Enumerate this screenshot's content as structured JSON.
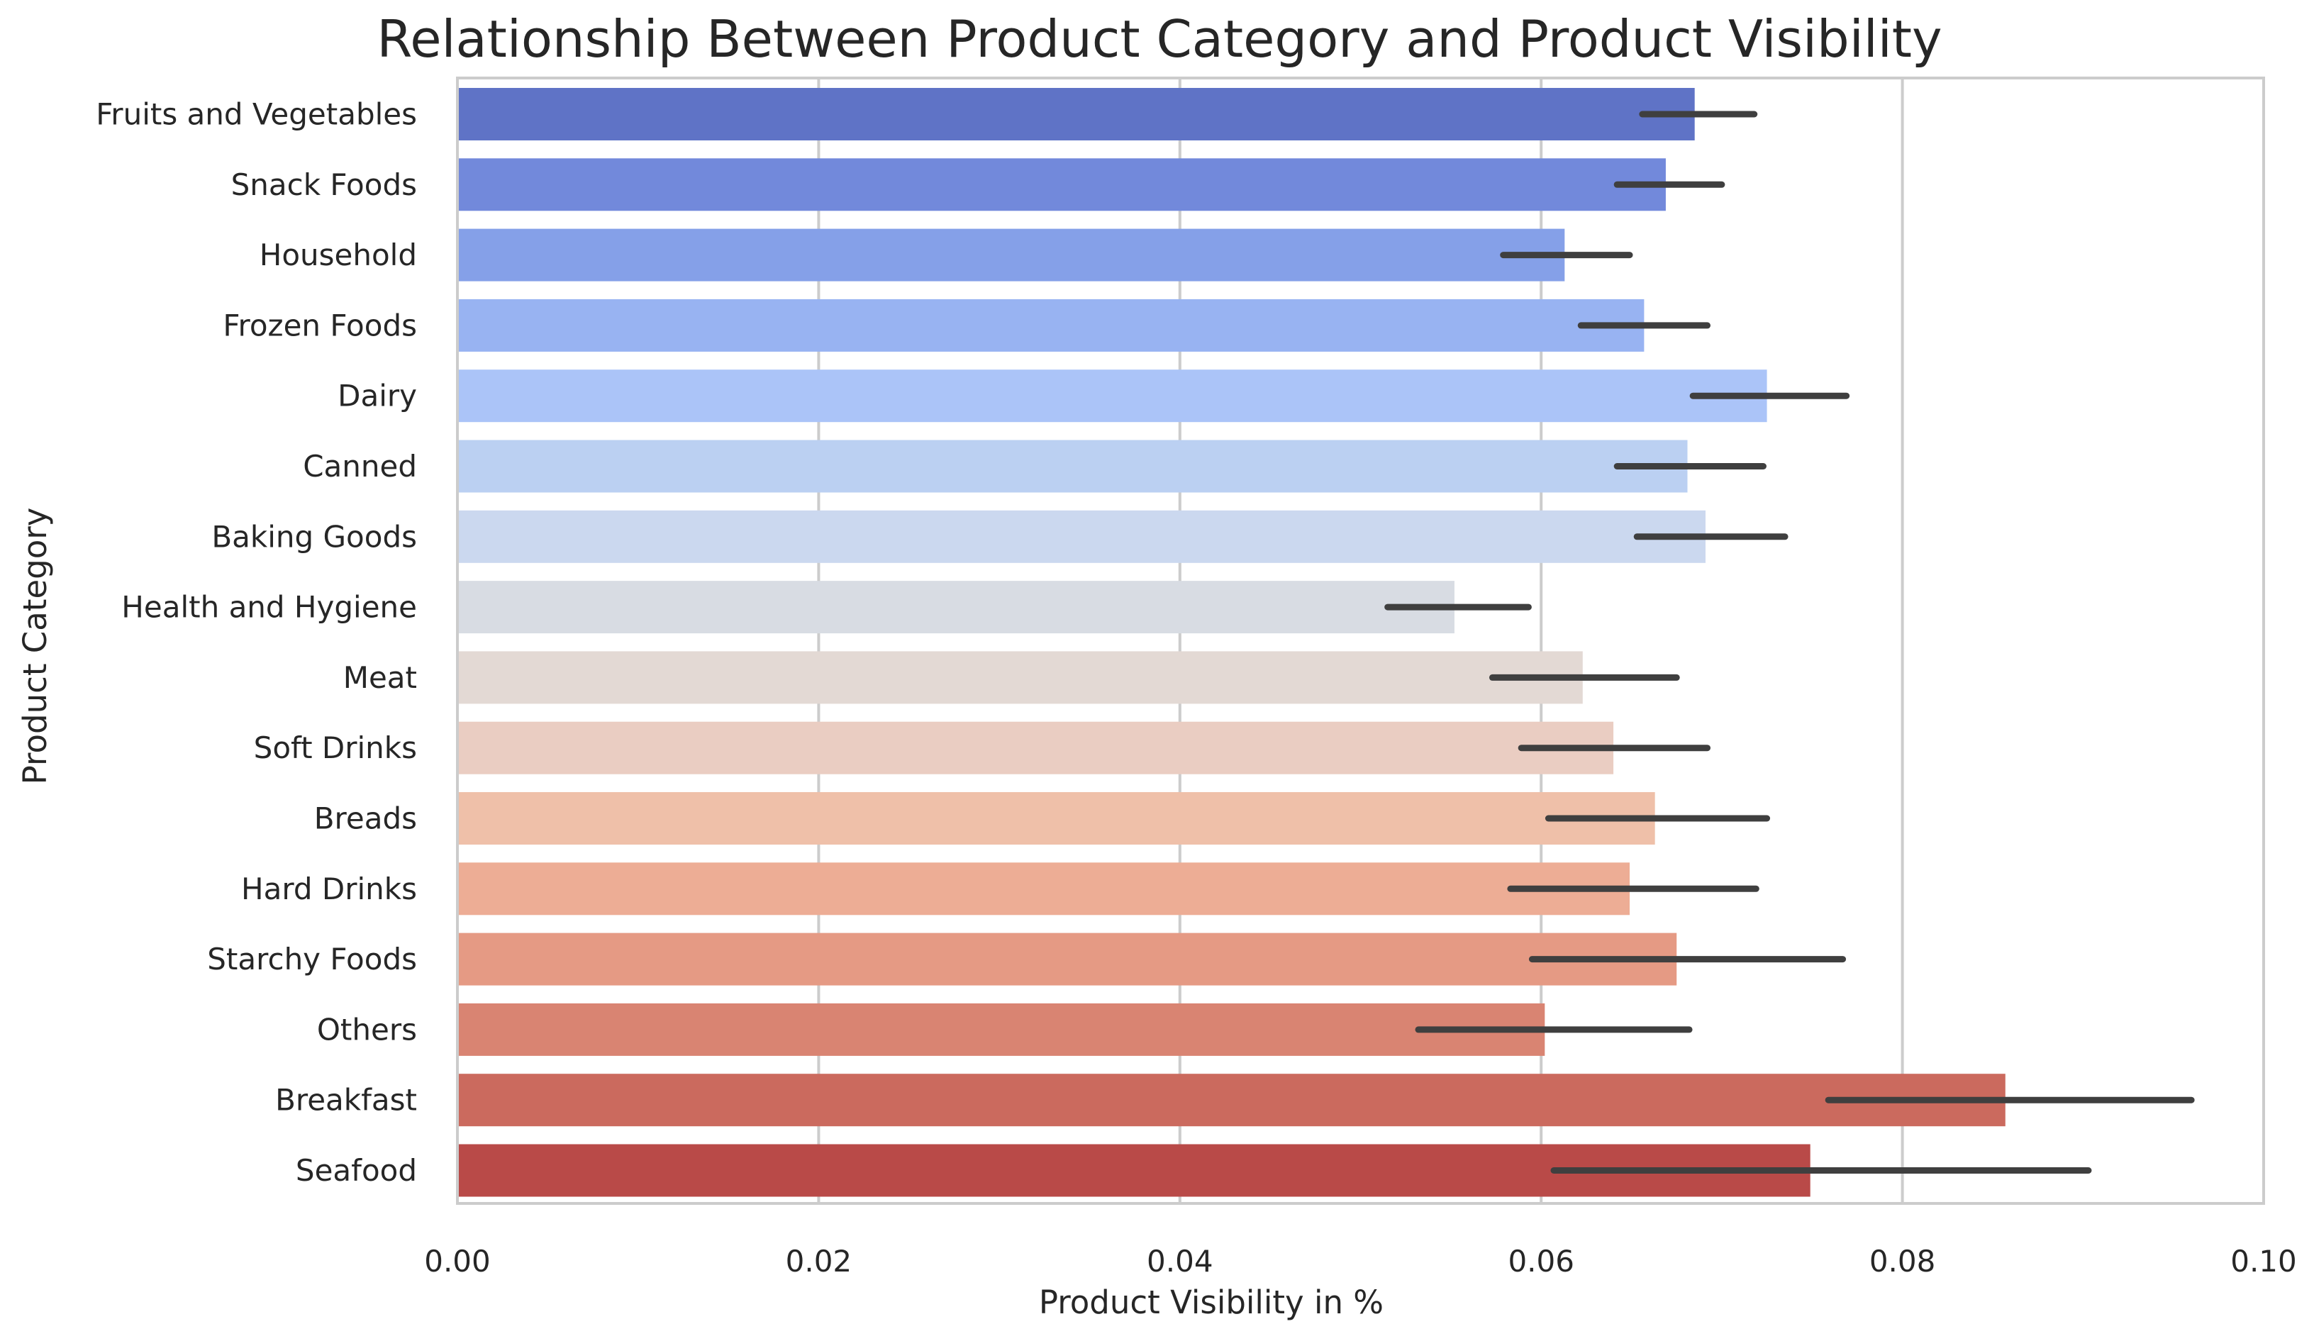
{
  "chart_data": {
    "type": "bar",
    "orientation": "horizontal",
    "title": "Relationship Between Product Category and Product Visibility",
    "xlabel": "Product Visibility in %",
    "ylabel": "Product Category",
    "xlim": [
      0,
      0.1
    ],
    "xticks": [
      0.0,
      0.02,
      0.04,
      0.06,
      0.08,
      0.1
    ],
    "xtick_labels": [
      "0.00",
      "0.02",
      "0.04",
      "0.06",
      "0.08",
      "0.10"
    ],
    "grid": "vertical",
    "legend": "none",
    "palette": "coolwarm",
    "categories": [
      "Fruits and Vegetables",
      "Snack Foods",
      "Household",
      "Frozen Foods",
      "Dairy",
      "Canned",
      "Baking Goods",
      "Health and Hygiene",
      "Meat",
      "Soft Drinks",
      "Breads",
      "Hard Drinks",
      "Starchy Foods",
      "Others",
      "Breakfast",
      "Seafood"
    ],
    "values": [
      0.0685,
      0.0669,
      0.0613,
      0.0657,
      0.0725,
      0.0681,
      0.0691,
      0.0552,
      0.0623,
      0.064,
      0.0663,
      0.0649,
      0.0675,
      0.0602,
      0.0857,
      0.0749
    ],
    "ci_low": [
      0.0656,
      0.0642,
      0.0579,
      0.0622,
      0.0684,
      0.0642,
      0.0653,
      0.0515,
      0.0573,
      0.0589,
      0.0604,
      0.0583,
      0.0595,
      0.0532,
      0.0759,
      0.0607
    ],
    "ci_high": [
      0.0718,
      0.07,
      0.0649,
      0.0692,
      0.0769,
      0.0723,
      0.0735,
      0.0593,
      0.0675,
      0.0692,
      0.0725,
      0.0719,
      0.0767,
      0.0682,
      0.096,
      0.0903
    ],
    "colors": [
      "#5f73c6",
      "#7289db",
      "#85a0e8",
      "#98b3f2",
      "#abc4f8",
      "#bbd0f2",
      "#cbd8ef",
      "#d8dce3",
      "#e3d9d4",
      "#eacdc2",
      "#efc0a9",
      "#edad95",
      "#e59a84",
      "#d98472",
      "#cb6a5e",
      "#b94a48"
    ]
  }
}
